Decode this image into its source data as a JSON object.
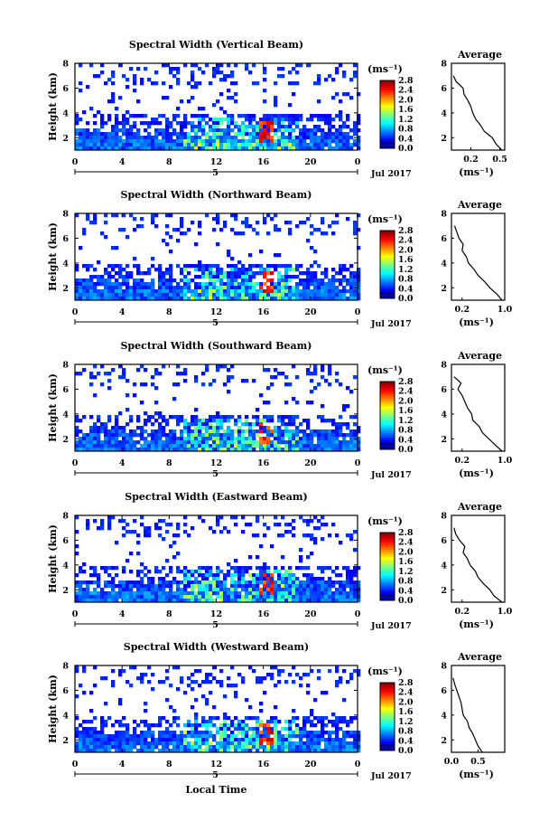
{
  "figure": {
    "xlabel": "Local Time",
    "date_label": "Jul 2017",
    "date_day": "5",
    "colorbar_unit": "(ms⁻¹)",
    "average_title": "Average",
    "average_xlabel": "(ms⁻¹)",
    "height_label": "Height (km)"
  },
  "chart_data": [
    {
      "type": "heatmap",
      "title": "Spectral Width (Vertical Beam)",
      "ylabel": "Height (km)",
      "xlim": [
        0,
        24
      ],
      "ylim": [
        1,
        8
      ],
      "xticks": [
        "0",
        "4",
        "8",
        "12",
        "16",
        "20",
        "0"
      ],
      "yticks": [
        "2",
        "4",
        "6",
        "8"
      ],
      "colorbar": {
        "range": [
          0.0,
          2.8
        ],
        "ticks": [
          "0.0",
          "0.4",
          "0.8",
          "1.2",
          "1.6",
          "2.0",
          "2.4",
          "2.8"
        ]
      },
      "average_profile": {
        "xlim": [
          0,
          0.55
        ],
        "xticks": [
          "0.2",
          "0.5"
        ],
        "height": [
          1,
          1.5,
          2,
          2.5,
          3,
          3.5,
          4,
          4.5,
          5,
          5.5,
          6,
          6.5,
          7
        ],
        "value": [
          0.52,
          0.46,
          0.42,
          0.34,
          0.3,
          0.25,
          0.22,
          0.2,
          0.17,
          0.13,
          0.12,
          0.05,
          0.02
        ]
      }
    },
    {
      "type": "heatmap",
      "title": "Spectral Width (Northward Beam)",
      "ylabel": "Height (km)",
      "xlim": [
        0,
        24
      ],
      "ylim": [
        1,
        8
      ],
      "xticks": [
        "0",
        "4",
        "8",
        "12",
        "16",
        "20",
        "0"
      ],
      "yticks": [
        "2",
        "4",
        "6",
        "8"
      ],
      "colorbar": {
        "range": [
          0.0,
          2.8
        ],
        "ticks": [
          "0.0",
          "0.4",
          "0.8",
          "1.2",
          "1.6",
          "2.0",
          "2.4",
          "2.8"
        ]
      },
      "average_profile": {
        "xlim": [
          0,
          1.0
        ],
        "xticks": [
          "0.2",
          "1.0"
        ],
        "height": [
          1,
          1.5,
          2,
          2.5,
          3,
          3.5,
          4,
          4.5,
          5,
          5.5,
          6,
          6.5,
          7
        ],
        "value": [
          0.95,
          0.85,
          0.72,
          0.62,
          0.5,
          0.42,
          0.32,
          0.28,
          0.2,
          0.22,
          0.14,
          0.1,
          0.06
        ]
      }
    },
    {
      "type": "heatmap",
      "title": "Spectral Width (Southward Beam)",
      "ylabel": "Height (km)",
      "xlim": [
        0,
        24
      ],
      "ylim": [
        1,
        8
      ],
      "xticks": [
        "0",
        "4",
        "8",
        "12",
        "16",
        "20",
        "0"
      ],
      "yticks": [
        "2",
        "4",
        "6",
        "8"
      ],
      "colorbar": {
        "range": [
          0.0,
          2.8
        ],
        "ticks": [
          "0.0",
          "0.4",
          "0.8",
          "1.2",
          "1.6",
          "2.0",
          "2.4",
          "2.8"
        ]
      },
      "average_profile": {
        "xlim": [
          0,
          1.0
        ],
        "xticks": [
          "0.2",
          "1.0"
        ],
        "height": [
          1,
          1.5,
          2,
          2.5,
          3,
          3.5,
          4,
          4.5,
          5,
          5.5,
          6,
          6.5,
          7
        ],
        "value": [
          0.95,
          0.82,
          0.7,
          0.58,
          0.52,
          0.4,
          0.38,
          0.3,
          0.25,
          0.2,
          0.12,
          0.18,
          0.05
        ]
      }
    },
    {
      "type": "heatmap",
      "title": "Spectral Width (Eastward Beam)",
      "ylabel": "Height (km)",
      "xlim": [
        0,
        24
      ],
      "ylim": [
        1,
        8
      ],
      "xticks": [
        "0",
        "4",
        "8",
        "12",
        "16",
        "20",
        "0"
      ],
      "yticks": [
        "2",
        "4",
        "6",
        "8"
      ],
      "colorbar": {
        "range": [
          0.0,
          2.8
        ],
        "ticks": [
          "0.0",
          "0.4",
          "0.8",
          "1.2",
          "1.6",
          "2.0",
          "2.4",
          "2.8"
        ]
      },
      "average_profile": {
        "xlim": [
          0,
          1.0
        ],
        "xticks": [
          "0.2",
          "1.0"
        ],
        "height": [
          1,
          1.5,
          2,
          2.5,
          3,
          3.5,
          4,
          4.5,
          5,
          5.5,
          6,
          6.5,
          7
        ],
        "value": [
          0.95,
          0.8,
          0.72,
          0.6,
          0.5,
          0.45,
          0.35,
          0.3,
          0.22,
          0.25,
          0.15,
          0.08,
          0.05
        ]
      }
    },
    {
      "type": "heatmap",
      "title": "Spectral Width (Westward Beam)",
      "ylabel": "Height (km)",
      "xlim": [
        0,
        24
      ],
      "ylim": [
        1,
        8
      ],
      "xticks": [
        "0",
        "4",
        "8",
        "12",
        "16",
        "20",
        "0"
      ],
      "yticks": [
        "2",
        "4",
        "6",
        "8"
      ],
      "colorbar": {
        "range": [
          0.0,
          2.8
        ],
        "ticks": [
          "0.0",
          "0.4",
          "0.8",
          "1.2",
          "1.6",
          "2.0",
          "2.4",
          "2.8"
        ]
      },
      "average_profile": {
        "xlim": [
          0,
          1.0
        ],
        "xticks": [
          "0.0",
          "0.5"
        ],
        "height": [
          1,
          1.5,
          2,
          2.5,
          3,
          3.5,
          4,
          4.5,
          5,
          5.5,
          6,
          6.5,
          7
        ],
        "value": [
          0.58,
          0.5,
          0.45,
          0.4,
          0.33,
          0.3,
          0.22,
          0.2,
          0.18,
          0.14,
          0.1,
          0.06,
          0.03
        ]
      }
    }
  ]
}
